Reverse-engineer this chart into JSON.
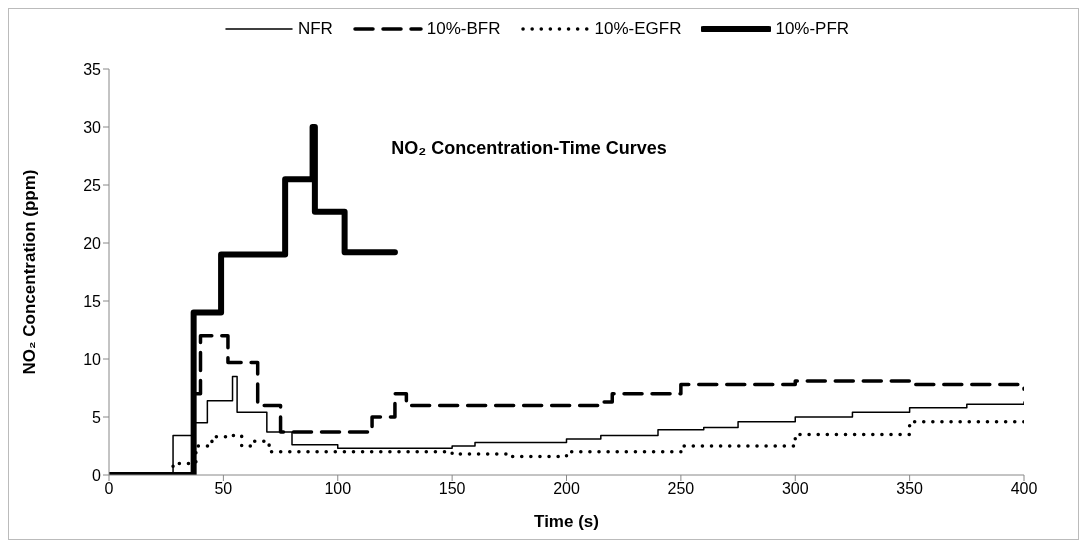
{
  "chart_data": {
    "type": "step",
    "title": "NO₂ Concentration-Time Curves",
    "xlabel": "Time (s)",
    "ylabel": "NO₂ Concentration (ppm)",
    "xlim": [
      0,
      400
    ],
    "xticks": [
      0,
      50,
      100,
      150,
      200,
      250,
      300,
      350,
      400
    ],
    "ylim": [
      0,
      35
    ],
    "yticks": [
      0,
      5,
      10,
      15,
      20,
      25,
      30,
      35
    ],
    "grid": false,
    "legend": "top",
    "marker": "none",
    "series": [
      {
        "name": "NFR",
        "color": "#000000",
        "line_style": "solid",
        "x": [
          0,
          28,
          37,
          43,
          54,
          56,
          57,
          69,
          80,
          100,
          150,
          160,
          200,
          215,
          240,
          260,
          275,
          300,
          325,
          350,
          375,
          400
        ],
        "values": [
          0,
          3.4,
          4.5,
          6.4,
          8.5,
          5.4,
          5.4,
          3.7,
          2.6,
          2.3,
          2.5,
          2.8,
          3.1,
          3.4,
          3.9,
          4.1,
          4.6,
          5.0,
          5.4,
          5.8,
          6.1,
          6.3
        ]
      },
      {
        "name": "10%-BFR",
        "color": "#000000",
        "line_style": "dashed",
        "x": [
          0,
          37,
          40,
          52,
          65,
          75,
          100,
          115,
          125,
          130,
          215,
          220,
          250,
          300,
          350,
          400
        ],
        "values": [
          0,
          7,
          12,
          9.7,
          6,
          3.7,
          3.7,
          5,
          7,
          6,
          6.3,
          7,
          7.8,
          8.1,
          7.8,
          7.4
        ]
      },
      {
        "name": "10%-EGFR",
        "color": "#000000",
        "line_style": "dotted",
        "x": [
          0,
          28,
          38,
          45,
          52,
          58,
          62,
          70,
          100,
          150,
          175,
          200,
          250,
          300,
          350,
          400
        ],
        "values": [
          0,
          1,
          2.5,
          3.3,
          3.4,
          2.5,
          2.9,
          2,
          2,
          1.8,
          1.6,
          2,
          2.5,
          3.5,
          4.6,
          5.3
        ]
      },
      {
        "name": "10%-PFR",
        "color": "#000000",
        "line_style": "solid",
        "x": [
          0,
          37,
          49,
          77,
          87,
          89,
          90,
          103,
          125
        ],
        "values": [
          0,
          14,
          19,
          25.5,
          25.5,
          30,
          22.7,
          19.2,
          19.2
        ]
      }
    ]
  }
}
